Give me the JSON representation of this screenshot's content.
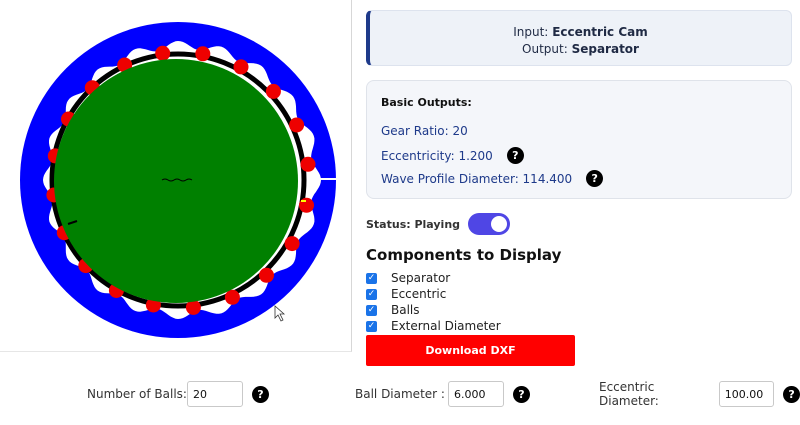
{
  "io": {
    "input_label": "Input:",
    "input_value": "Eccentric Cam",
    "output_label": "Output:",
    "output_value": "Separator"
  },
  "outputs": {
    "title": "Basic Outputs:",
    "gear_ratio": "Gear Ratio: 20",
    "eccentricity": "Eccentricity: 1.200",
    "wave_diameter": "Wave Profile Diameter: 114.400"
  },
  "help_glyph": "?",
  "status": {
    "label": "Status: Playing",
    "playing": true
  },
  "components": {
    "title": "Components to Display",
    "items": [
      {
        "label": "Separator",
        "checked": true
      },
      {
        "label": "Eccentric",
        "checked": true
      },
      {
        "label": "Balls",
        "checked": true
      },
      {
        "label": "External Diameter",
        "checked": true
      }
    ]
  },
  "download_label": "Download DXF",
  "params": {
    "num_balls_label": "Number of Balls:",
    "num_balls_value": "20",
    "ball_diameter_label": "Ball Diameter :",
    "ball_diameter_value": "6.000",
    "eccentric_diameter_label": "Eccentric Diameter:",
    "eccentric_diameter_value": "100.00"
  },
  "drawing": {
    "ball_count": 20,
    "colors": {
      "outer_ring": "#0000ff",
      "eccentric": "#008000",
      "balls": "#ee0000",
      "separator": "#000000",
      "wave": "#ffffff"
    }
  }
}
